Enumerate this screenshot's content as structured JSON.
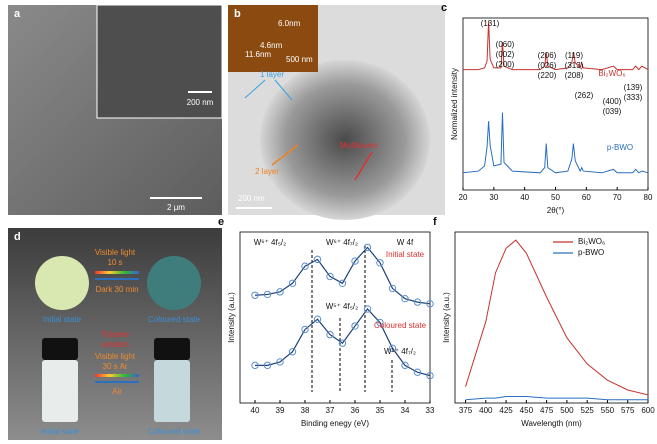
{
  "panels": {
    "a": {
      "label": "a",
      "inset_scale": "200 nm",
      "scale": "2 μm"
    },
    "b": {
      "label": "b",
      "inset_scale": "500 nm",
      "inset_heights": [
        "6.0nm",
        "4.6nm",
        "11.6nm"
      ],
      "layers": [
        "1 layer",
        "2 layer",
        "Multilayers"
      ],
      "scale": "200 nm"
    },
    "d": {
      "label": "d",
      "top": {
        "forward": [
          "Visible light",
          "10 s"
        ],
        "back": "Dark 30 min",
        "left": "Initial state",
        "right": "Coloured state"
      },
      "bottom": {
        "solvent": [
          "Toluene",
          "solution"
        ],
        "forward": [
          "Visible light",
          "30 s Ar"
        ],
        "back": "Air",
        "left": "Initial state",
        "right": "Coloured state"
      }
    }
  },
  "chart_data": [
    {
      "type": "line",
      "panel_label": "c",
      "ylabel": "Normalized intensity",
      "xlabel": "2θ(°)",
      "xlim": [
        20,
        80
      ],
      "xticks": [
        20,
        30,
        40,
        50,
        60,
        70,
        80
      ],
      "ylim": [
        0,
        100
      ],
      "x": [
        20,
        25,
        27,
        27.8,
        28.3,
        28.8,
        30,
        32.3,
        32.8,
        33.3,
        36,
        45,
        46.5,
        47,
        47.5,
        50,
        54,
        55.3,
        55.8,
        56.4,
        58,
        58.5,
        59,
        65,
        68.8,
        70,
        75,
        76,
        77,
        78,
        80
      ],
      "series": [
        {
          "color": "#c8322f",
          "values": [
            70,
            70,
            71,
            75,
            98,
            76,
            71,
            71,
            86,
            72,
            70,
            70,
            72,
            80,
            72,
            70,
            71,
            74,
            80,
            74,
            71,
            74,
            71,
            70,
            72,
            70,
            70,
            72,
            70,
            72,
            70
          ]
        },
        {
          "color": "#2a6fc0",
          "values": [
            10,
            11,
            14,
            25,
            40,
            26,
            14,
            15,
            45,
            16,
            11,
            10,
            13,
            27,
            13,
            10,
            11,
            18,
            27,
            17,
            11,
            13,
            11,
            10,
            12,
            10,
            10,
            12,
            10,
            11,
            10
          ]
        }
      ],
      "annotations": [
        "(131)",
        "(060)",
        "(002)",
        "(200)",
        "(206)",
        "(026)",
        "(220)",
        "(119)",
        "(313)",
        "(208)",
        "(262)",
        "(400)",
        "(039)",
        "(139)",
        "(333)",
        "Bi₂WO₆",
        "p-BWO"
      ]
    },
    {
      "type": "scatter-line",
      "panel_label": "e",
      "ylabel": "Intensity (a.u.)",
      "xlabel": "Binding enegy (eV)",
      "xlim": [
        40.6,
        33
      ],
      "xticks": [
        40,
        39,
        38,
        37,
        36,
        35,
        34,
        33
      ],
      "ylim": [
        0,
        100
      ],
      "x": [
        40,
        39.5,
        39,
        38.5,
        38,
        37.5,
        37,
        36.5,
        36,
        35.5,
        35,
        34.5,
        34,
        33.5,
        33
      ],
      "series": [
        {
          "color": "#5b8fc9",
          "values": [
            63,
            63.5,
            65,
            70,
            80,
            84,
            74,
            70,
            83,
            91,
            82,
            67,
            61,
            59,
            58
          ]
        },
        {
          "color": "#5b8fc9",
          "values": [
            22,
            22,
            24,
            30,
            43,
            49,
            40,
            35,
            45,
            55,
            47,
            32,
            22,
            18,
            16
          ]
        }
      ],
      "annotations": [
        "W⁶⁺ 4f₅/₂",
        "W⁶⁺ 4f₇/₂",
        "W 4f",
        "Initial state",
        "Coloured state",
        "W⁵⁺ 4f₅/₂",
        "W⁵⁺ 4f₇/₂"
      ]
    },
    {
      "type": "line",
      "panel_label": "f",
      "ylabel": "Intensity (a.u.)",
      "xlabel": "Wavelength (nm)",
      "xlim": [
        362,
        600
      ],
      "xticks": [
        375,
        400,
        425,
        450,
        475,
        500,
        525,
        550,
        575,
        600
      ],
      "ylim": [
        0,
        105
      ],
      "x": [
        375,
        400,
        412,
        425,
        437,
        450,
        475,
        500,
        525,
        550,
        575,
        600
      ],
      "series": [
        {
          "name": "Bi₂WO₆",
          "color": "#c8322f",
          "values": [
            10,
            50,
            80,
            95,
            100,
            92,
            65,
            40,
            24,
            14,
            8,
            5
          ]
        },
        {
          "name": "p-BWO",
          "color": "#2a6fc0",
          "values": [
            2,
            3,
            3,
            4,
            4,
            4,
            3,
            3,
            3,
            2,
            2,
            2
          ]
        }
      ],
      "legend": "upper right"
    }
  ]
}
